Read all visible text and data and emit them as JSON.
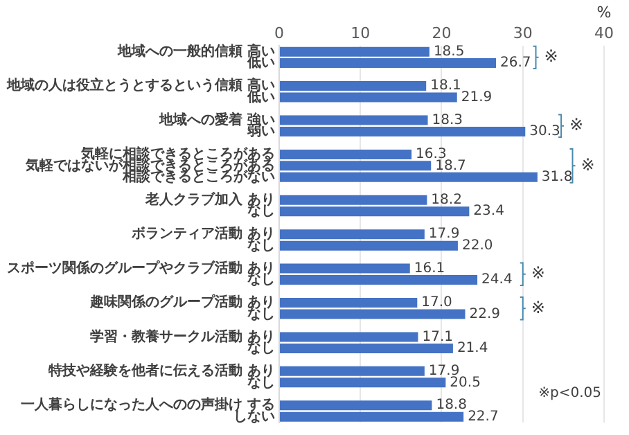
{
  "chart_data": {
    "type": "bar",
    "orientation": "horizontal",
    "xlabel": "%",
    "categories": [
      "地域への一般的信頼 高い",
      "低い",
      null,
      "地域の人は役立とうとするという信頼 高い",
      "低い",
      null,
      "地域への愛着 強い",
      "弱い",
      null,
      "気軽に相談できるところがある",
      "気軽ではないが相談できるところがある",
      "相談できるところがない",
      null,
      "老人クラブ加入 あり",
      "なし",
      null,
      "ボランティア活動 あり",
      "なし",
      null,
      "スポーツ関係のグループやクラブ活動 あり",
      "なし",
      null,
      "趣味関係のグループ活動 あり",
      "なし",
      null,
      "学習・教養サークル活動 あり",
      "なし",
      null,
      "特技や経験を他者に伝える活動 あり",
      "なし",
      null,
      "一人暮らしになった人へのの声掛け する",
      "しない"
    ],
    "values": [
      18.5,
      26.7,
      null,
      18.1,
      21.9,
      null,
      18.3,
      30.3,
      null,
      16.3,
      18.7,
      31.8,
      null,
      18.2,
      23.4,
      null,
      17.9,
      22.0,
      null,
      16.1,
      24.4,
      null,
      17.0,
      22.9,
      null,
      17.1,
      21.4,
      null,
      17.9,
      20.5,
      null,
      18.8,
      22.7
    ],
    "value_labels": [
      "18.5",
      "26.7",
      null,
      "18.1",
      "21.9",
      null,
      "18.3",
      "30.3",
      null,
      "16.3",
      "18.7",
      "31.8",
      null,
      "18.2",
      "23.4",
      null,
      "17.9",
      "22.0",
      null,
      "16.1",
      "24.4",
      null,
      "17.0",
      "22.9",
      null,
      "17.1",
      "21.4",
      null,
      "17.9",
      "20.5",
      null,
      "18.8",
      "22.7"
    ],
    "color": "#4472c4",
    "xlim": [
      0,
      40
    ],
    "xticks": [
      0,
      10,
      20,
      30,
      40
    ],
    "grid": "x",
    "legend": false,
    "annotations": [
      "※",
      "※",
      "※",
      "※",
      "※",
      "※p<0.05"
    ]
  }
}
